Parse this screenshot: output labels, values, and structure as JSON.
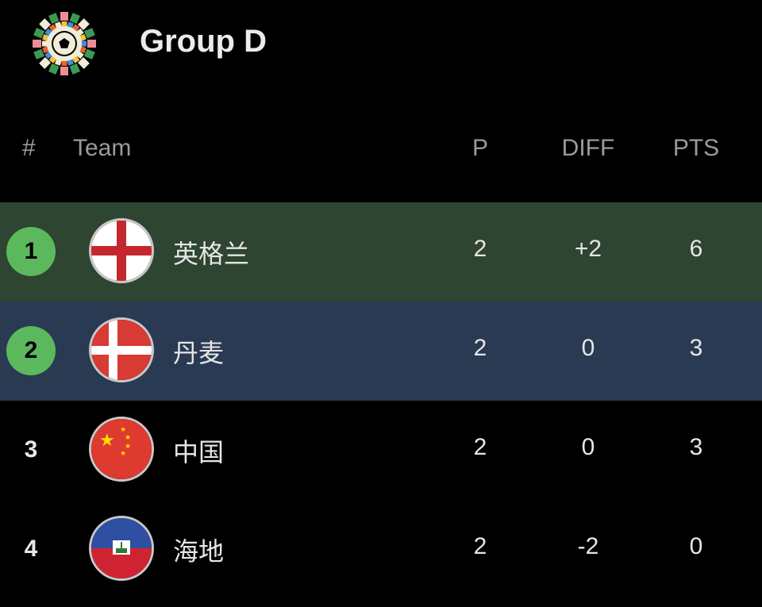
{
  "header": {
    "title": "Group D",
    "logo_icon": "world-cup-logo"
  },
  "columns": {
    "rank": "#",
    "team": "Team",
    "played": "P",
    "diff": "DIFF",
    "pts": "PTS"
  },
  "colors": {
    "qualified_badge": "#5cb85c",
    "row1_bg": "#2d4531",
    "row2_bg": "#2a3a52"
  },
  "rows": [
    {
      "rank": "1",
      "team": "英格兰",
      "flag": "england-flag",
      "played": "2",
      "diff": "+2",
      "pts": "6"
    },
    {
      "rank": "2",
      "team": "丹麦",
      "flag": "denmark-flag",
      "played": "2",
      "diff": "0",
      "pts": "3"
    },
    {
      "rank": "3",
      "team": "中国",
      "flag": "china-flag",
      "played": "2",
      "diff": "0",
      "pts": "3"
    },
    {
      "rank": "4",
      "team": "海地",
      "flag": "haiti-flag",
      "played": "2",
      "diff": "-2",
      "pts": "0"
    }
  ]
}
